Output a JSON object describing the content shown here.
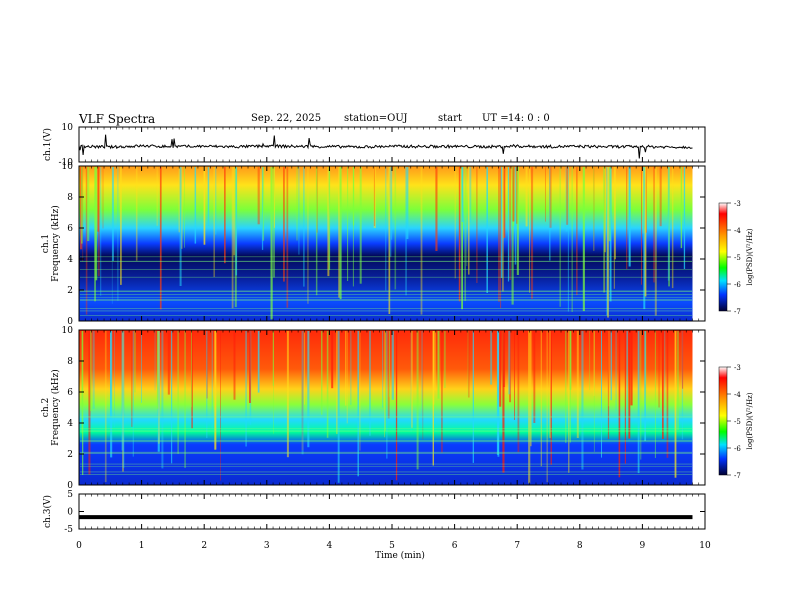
{
  "header": {
    "title": "VLF Spectra",
    "date": "Sep. 22, 2025",
    "station": "station=OUJ",
    "start_label": "start",
    "ut_label": "UT =",
    "ut_value": "14: 0  : 0"
  },
  "chart_data": [
    {
      "type": "line",
      "panel": "ch1-waveform",
      "ylabel": "ch.1(V)",
      "ylim": [
        -10,
        10
      ],
      "yticks": [
        "10",
        "-10"
      ],
      "xlim": [
        0,
        10
      ],
      "series_description_free": true,
      "x": [
        0,
        0.5,
        1,
        1.5,
        2,
        2.5,
        3,
        3.5,
        4,
        4.5,
        5,
        5.5,
        6,
        6.5,
        7,
        7.5,
        8,
        8.5,
        9,
        9.5,
        9.8
      ],
      "y": [
        -1,
        -1.5,
        -0.8,
        -1.2,
        -1,
        -1.3,
        -0.9,
        -1.1,
        -1.2,
        -1.4,
        -1,
        -1.2,
        -1.1,
        -1.3,
        -1,
        -1.2,
        -1.1,
        -1.3,
        -1.2,
        -1.5,
        -1.4
      ]
    },
    {
      "type": "heatmap",
      "panel": "ch1-spectrogram",
      "ylabel": "ch.1\nFrequency (kHz)",
      "ylim": [
        0,
        10
      ],
      "yticks": [
        "0",
        "2",
        "4",
        "6",
        "8",
        "10"
      ],
      "xlim": [
        0,
        9.8
      ],
      "colorbar": {
        "label": "log(PSD)(V²/Hz)",
        "range": [
          -7,
          -3
        ],
        "ticks": [
          "-3",
          "-4",
          "-5",
          "-6",
          "-7"
        ]
      }
    },
    {
      "type": "heatmap",
      "panel": "ch2-spectrogram",
      "ylabel": "ch.2\nFrequency (kHz)",
      "ylim": [
        0,
        10
      ],
      "yticks": [
        "0",
        "2",
        "4",
        "6",
        "8",
        "10"
      ],
      "xlim": [
        0,
        9.8
      ],
      "colorbar": {
        "label": "log(PSD)(V²/Hz)",
        "range": [
          -7,
          -3
        ],
        "ticks": [
          "-3",
          "-4",
          "-5",
          "-6",
          "-7"
        ]
      }
    },
    {
      "type": "line",
      "panel": "ch3-waveform",
      "ylabel": "ch.3(V)",
      "ylim": [
        -5,
        5
      ],
      "yticks": [
        "5",
        "0",
        "-5"
      ],
      "xlim": [
        0,
        10
      ],
      "x": [
        0,
        9.8
      ],
      "y": [
        -1.6,
        -1.6
      ]
    }
  ],
  "xaxis": {
    "label": "Time (min)",
    "ticks": [
      "0",
      "1",
      "2",
      "3",
      "4",
      "5",
      "6",
      "7",
      "8",
      "9",
      "10"
    ]
  },
  "colors": {
    "axis": "#000000",
    "ch1_background": "#0a1a7a",
    "ch2_background": "#ff3b1a"
  }
}
